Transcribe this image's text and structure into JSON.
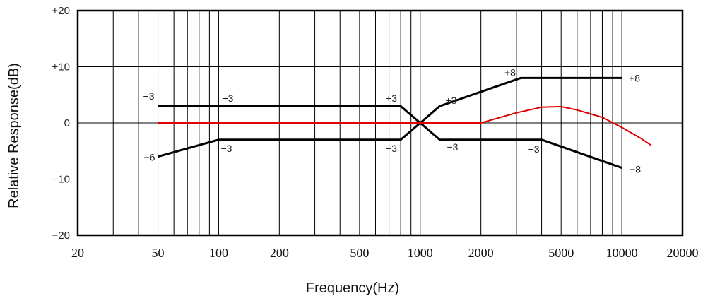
{
  "chart_data": {
    "type": "line",
    "xlabel": "Frequency(Hz)",
    "ylabel": "Relative Response(dB)",
    "x_scale": "log",
    "xlim": [
      20,
      20000
    ],
    "ylim": [
      -20,
      20
    ],
    "x_ticks": [
      20,
      50,
      100,
      200,
      500,
      1000,
      2000,
      5000,
      10000,
      20000
    ],
    "x_tick_labels": [
      "20",
      "50",
      "100",
      "200",
      "500",
      "1000",
      "2000",
      "5000",
      "10000",
      "20000"
    ],
    "y_ticks": [
      20,
      10,
      0,
      -10,
      -20
    ],
    "y_tick_labels": [
      "+20",
      "+10",
      "0",
      "−10",
      "−20"
    ],
    "grid": true,
    "series": [
      {
        "color": "#000000",
        "points": [
          [
            50,
            3
          ],
          [
            800,
            3
          ],
          [
            1000,
            0
          ],
          [
            1250,
            3
          ],
          [
            3150,
            8
          ],
          [
            10000,
            8
          ]
        ]
      },
      {
        "color": "#000000",
        "points": [
          [
            50,
            -6
          ],
          [
            100,
            -3
          ],
          [
            800,
            -3
          ],
          [
            1000,
            0
          ],
          [
            1250,
            -3
          ],
          [
            4000,
            -3
          ],
          [
            10000,
            -8
          ]
        ]
      },
      {
        "color": "#e00000",
        "points": [
          [
            50,
            0
          ],
          [
            2000,
            0
          ],
          [
            3000,
            1.8
          ],
          [
            4000,
            2.8
          ],
          [
            5000,
            2.9
          ],
          [
            6000,
            2.3
          ],
          [
            8000,
            1.0
          ],
          [
            10000,
            -0.8
          ],
          [
            12500,
            -2.8
          ],
          [
            14000,
            -4.0
          ]
        ]
      }
    ],
    "annotations": [
      {
        "text": "+3",
        "x": 50,
        "y": 3
      },
      {
        "text": "+3",
        "x": 100,
        "y": 3
      },
      {
        "text": "+3",
        "x": 800,
        "y": 3
      },
      {
        "text": "+3",
        "x": 1250,
        "y": 3
      },
      {
        "text": "+8",
        "x": 3150,
        "y": 8
      },
      {
        "text": "+8",
        "x": 10000,
        "y": 8
      },
      {
        "text": "−6",
        "x": 50,
        "y": -6
      },
      {
        "text": "−3",
        "x": 100,
        "y": -3
      },
      {
        "text": "−3",
        "x": 800,
        "y": -3
      },
      {
        "text": "−3",
        "x": 1250,
        "y": -3
      },
      {
        "text": "−3",
        "x": 4000,
        "y": -3
      },
      {
        "text": "−8",
        "x": 10000,
        "y": -8
      }
    ]
  }
}
